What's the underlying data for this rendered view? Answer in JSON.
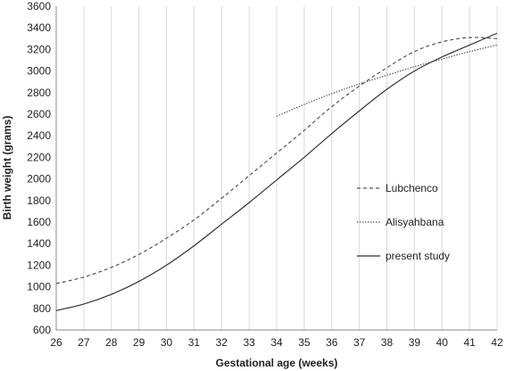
{
  "chart_data": {
    "type": "line",
    "title": "",
    "xlabel": "Gestational age (weeks)",
    "ylabel": "Birth weight (grams)",
    "xlim": [
      26,
      42
    ],
    "ylim": [
      600,
      3600
    ],
    "xticks": [
      26,
      27,
      28,
      29,
      30,
      31,
      32,
      33,
      34,
      35,
      36,
      37,
      38,
      39,
      40,
      41,
      42
    ],
    "yticks": [
      600,
      800,
      1000,
      1200,
      1400,
      1600,
      1800,
      2000,
      2200,
      2400,
      2600,
      2800,
      3000,
      3200,
      3400,
      3600
    ],
    "grid": "vertical",
    "legend": "right-middle",
    "series": [
      {
        "name": "Lubchenco",
        "style": "dashed",
        "color": "#555555",
        "x": [
          26,
          27,
          28,
          29,
          30,
          31,
          32,
          33,
          34,
          35,
          36,
          37,
          38,
          39,
          40,
          41,
          42
        ],
        "y": [
          1030,
          1090,
          1180,
          1300,
          1450,
          1620,
          1820,
          2030,
          2240,
          2450,
          2670,
          2860,
          3030,
          3180,
          3270,
          3310,
          3300
        ]
      },
      {
        "name": "Alisyahbana",
        "style": "dotted",
        "color": "#555555",
        "x": [
          34,
          35,
          36,
          37,
          38,
          39,
          40,
          41,
          42
        ],
        "y": [
          2580,
          2690,
          2790,
          2880,
          2960,
          3040,
          3110,
          3180,
          3240
        ]
      },
      {
        "name": "present study",
        "style": "solid",
        "color": "#333333",
        "x": [
          26,
          27,
          28,
          29,
          30,
          31,
          32,
          33,
          34,
          35,
          36,
          37,
          38,
          39,
          40,
          41,
          42
        ],
        "y": [
          780,
          840,
          930,
          1050,
          1200,
          1380,
          1580,
          1780,
          1990,
          2200,
          2420,
          2630,
          2830,
          3000,
          3130,
          3240,
          3350
        ]
      }
    ]
  }
}
